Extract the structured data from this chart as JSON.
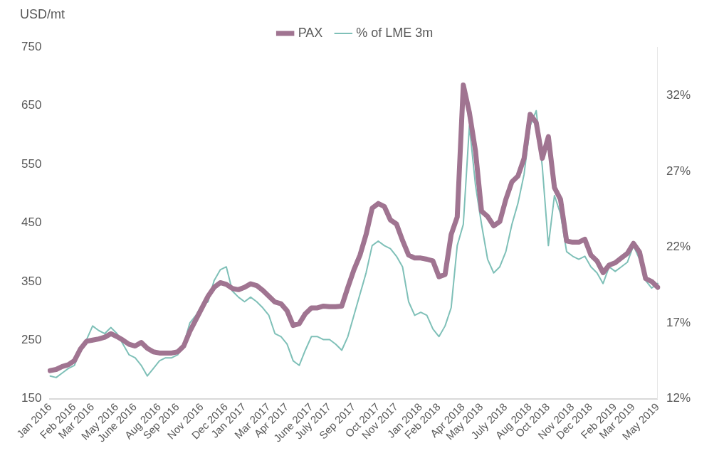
{
  "chart_data": {
    "type": "line",
    "ylabel": "USD/mt",
    "legend": "top",
    "grid": false,
    "marker": "none",
    "categories": [
      "Jan 2016",
      null,
      null,
      null,
      "Feb 2016",
      null,
      null,
      "Mar 2016",
      null,
      null,
      null,
      "May 2016",
      null,
      null,
      "June 2016",
      null,
      null,
      null,
      "Aug 2016",
      null,
      null,
      "Sep 2016",
      null,
      null,
      null,
      "Nov 2016",
      null,
      null,
      null,
      "Dec 2016",
      null,
      null,
      "Jan 2017",
      null,
      null,
      null,
      "Mar 2017",
      null,
      null,
      "Apr 2017",
      null,
      null,
      null,
      "June 2017",
      null,
      null,
      "July 2017",
      null,
      null,
      null,
      "Sep 2017",
      null,
      null,
      null,
      "Oct 2017",
      null,
      null,
      "Nov 2017",
      null,
      null,
      null,
      "Jan 2018",
      null,
      null,
      "Feb 2018",
      null,
      null,
      null,
      "Apr 2018",
      null,
      null,
      "May 2018",
      null,
      null,
      null,
      "July 2018",
      null,
      null,
      null,
      "Aug 2018",
      null,
      null,
      "Oct 2018",
      null,
      null,
      null,
      "Nov 2018",
      null,
      null,
      "Dec 2018",
      null,
      null,
      null,
      "Feb 2019",
      null,
      null,
      "Mar 2019",
      null,
      null,
      null,
      "May 2019"
    ],
    "ylim": [
      150,
      750
    ],
    "yticks": [
      150,
      250,
      350,
      450,
      550,
      650,
      750
    ],
    "y2lim": [
      12,
      35.2
    ],
    "y2ticks": [
      {
        "value": 12,
        "label": "12%"
      },
      {
        "value": 17,
        "label": "17%"
      },
      {
        "value": 22,
        "label": "22%"
      },
      {
        "value": 27,
        "label": "27%"
      },
      {
        "value": 32,
        "label": "32%"
      }
    ],
    "series": [
      {
        "name": "PAX",
        "color": "#a07491",
        "values": [
          198,
          200,
          205,
          208,
          215,
          235,
          248,
          250,
          252,
          255,
          261,
          256,
          250,
          243,
          240,
          246,
          236,
          230,
          228,
          228,
          228,
          230,
          240,
          265,
          285,
          305,
          325,
          340,
          348,
          345,
          338,
          336,
          340,
          346,
          343,
          335,
          325,
          315,
          312,
          300,
          275,
          278,
          295,
          305,
          305,
          308,
          307,
          307,
          308,
          340,
          370,
          395,
          430,
          475,
          483,
          478,
          455,
          448,
          420,
          395,
          390,
          390,
          388,
          385,
          358,
          362,
          430,
          460,
          685,
          638,
          573,
          470,
          461,
          445,
          452,
          490,
          520,
          530,
          560,
          635,
          621,
          560,
          597,
          510,
          490,
          419,
          417,
          417,
          422,
          395,
          385,
          365,
          378,
          382,
          390,
          398,
          415,
          400,
          355,
          350,
          340
        ]
      },
      {
        "name": "% of LME 3m",
        "color": "#7fc0b8",
        "axis": "y2",
        "values": [
          13.5,
          13.4,
          13.7,
          14.0,
          14.2,
          15.2,
          15.9,
          16.8,
          16.5,
          16.3,
          16.7,
          16.3,
          15.6,
          14.9,
          14.7,
          14.2,
          13.5,
          14.0,
          14.5,
          14.7,
          14.7,
          14.9,
          15.6,
          17.0,
          17.5,
          18.2,
          18.4,
          19.8,
          20.5,
          20.7,
          19.1,
          18.7,
          18.4,
          18.7,
          18.4,
          18.0,
          17.5,
          16.3,
          16.1,
          15.6,
          14.5,
          14.2,
          15.2,
          16.1,
          16.1,
          15.9,
          15.9,
          15.6,
          15.2,
          16.1,
          17.5,
          18.9,
          20.3,
          22.1,
          22.4,
          22.1,
          21.9,
          21.4,
          20.7,
          18.4,
          17.5,
          17.7,
          17.5,
          16.6,
          16.1,
          16.8,
          18.0,
          22.1,
          23.5,
          30.0,
          26.1,
          23.5,
          21.2,
          20.3,
          20.7,
          21.7,
          23.5,
          24.9,
          26.8,
          30.0,
          31.0,
          27.3,
          22.1,
          25.4,
          24.2,
          21.7,
          21.4,
          21.2,
          21.4,
          20.7,
          20.3,
          19.6,
          20.7,
          20.4,
          20.7,
          21.0,
          22.1,
          21.2,
          19.8,
          19.3,
          19.6
        ]
      }
    ]
  }
}
